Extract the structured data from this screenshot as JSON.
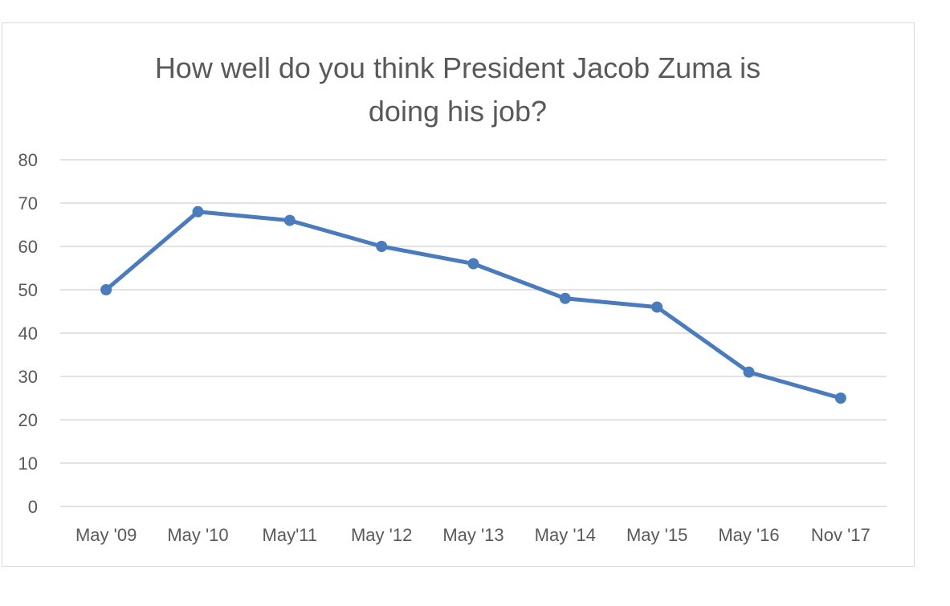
{
  "chart_data": {
    "type": "line",
    "title": [
      "How well do you think President Jacob Zuma is",
      "doing his job?"
    ],
    "xlabel": "",
    "ylabel": "",
    "categories": [
      "May '09",
      "May '10",
      "May'11",
      "May '12",
      "May '13",
      "May '14",
      "May '15",
      "May '16",
      "Nov '17"
    ],
    "series": [
      {
        "values": [
          50,
          68,
          66,
          60,
          56,
          48,
          46,
          31,
          25
        ]
      }
    ],
    "ylim": [
      0,
      80
    ],
    "yticks": [
      "0",
      "10",
      "20",
      "30",
      "40",
      "50",
      "60",
      "70",
      "80"
    ],
    "grid": true,
    "legend": "none",
    "colors": {
      "line": "#4a7bbd",
      "grid": "#d9d9d9",
      "text": "#595959"
    }
  }
}
